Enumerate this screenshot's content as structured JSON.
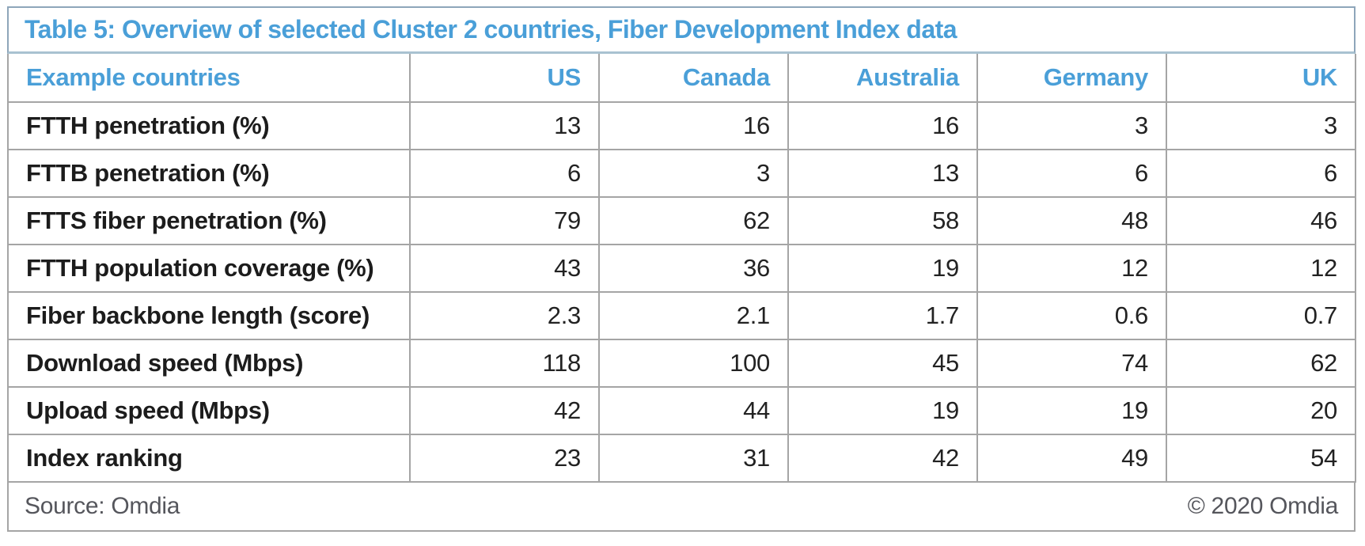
{
  "title": "Table 5: Overview of selected Cluster 2 countries, Fiber Development Index data",
  "chart_data": {
    "type": "table",
    "title": "Table 5: Overview of selected Cluster 2 countries, Fiber Development Index data",
    "header_label": "Example countries",
    "columns": [
      "US",
      "Canada",
      "Australia",
      "Germany",
      "UK"
    ],
    "rows": [
      {
        "label": "FTTH penetration (%)",
        "values": [
          13,
          16,
          16,
          3,
          3
        ]
      },
      {
        "label": "FTTB penetration (%)",
        "values": [
          6,
          3,
          13,
          6,
          6
        ]
      },
      {
        "label": "FTTS fiber penetration (%)",
        "values": [
          79,
          62,
          58,
          48,
          46
        ]
      },
      {
        "label": "FTTH population coverage (%)",
        "values": [
          43,
          36,
          19,
          12,
          12
        ]
      },
      {
        "label": "Fiber backbone length (score)",
        "values": [
          2.3,
          2.1,
          1.7,
          0.6,
          0.7
        ]
      },
      {
        "label": "Download speed (Mbps)",
        "values": [
          118,
          100,
          45,
          74,
          62
        ]
      },
      {
        "label": "Upload speed (Mbps)",
        "values": [
          42,
          44,
          19,
          19,
          20
        ]
      },
      {
        "label": "Index ranking",
        "values": [
          23,
          31,
          42,
          49,
          54
        ]
      }
    ]
  },
  "footer": {
    "source": "Source: Omdia",
    "copyright": "© 2020 Omdia"
  },
  "colors": {
    "accent_blue": "#4A9FD8",
    "title_border": "#8EA6BA",
    "title_underline": "#A9C2D1",
    "body_border": "#A5A5A5",
    "label_text": "#1C1C1C",
    "footer_text": "#55565C"
  }
}
